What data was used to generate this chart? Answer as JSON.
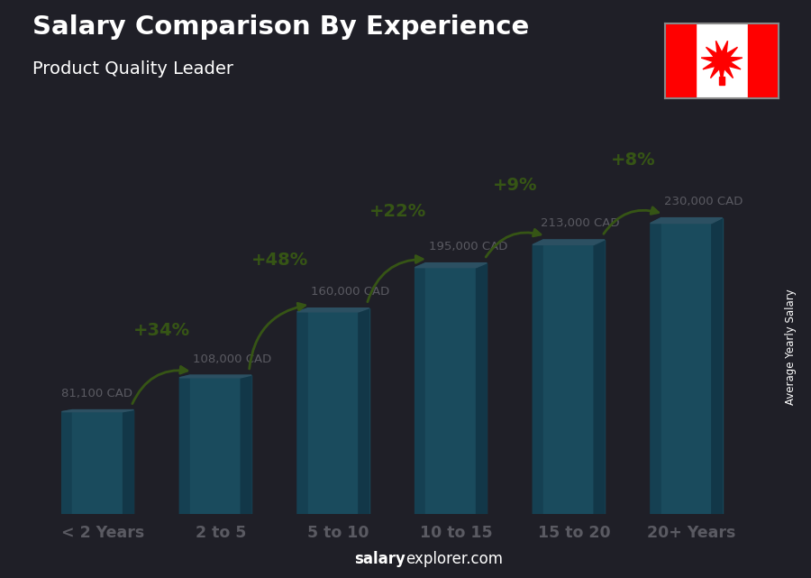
{
  "categories": [
    "< 2 Years",
    "2 to 5",
    "5 to 10",
    "10 to 15",
    "15 to 20",
    "20+ Years"
  ],
  "values": [
    81100,
    108000,
    160000,
    195000,
    213000,
    230000
  ],
  "labels": [
    "81,100 CAD",
    "108,000 CAD",
    "160,000 CAD",
    "195,000 CAD",
    "213,000 CAD",
    "230,000 CAD"
  ],
  "pct_changes": [
    "+34%",
    "+48%",
    "+22%",
    "+9%",
    "+8%"
  ],
  "bar_face": "#29ccee",
  "bar_left": "#1aaacc",
  "bar_top": "#66ddff",
  "bar_right": "#0e8caa",
  "title": "Salary Comparison By Experience",
  "subtitle": "Product Quality Leader",
  "ylabel": "Average Yearly Salary",
  "footer_bold": "salary",
  "footer_normal": "explorer.com",
  "text_white": "#ffffff",
  "text_green": "#88ee00",
  "arrow_green": "#88ee00",
  "ylim_max": 260000,
  "bar_width": 0.52,
  "x_positions": [
    0,
    1,
    2,
    3,
    4,
    5
  ],
  "flag_red": "#FF0000",
  "bg_dark": "#2a2a2a"
}
